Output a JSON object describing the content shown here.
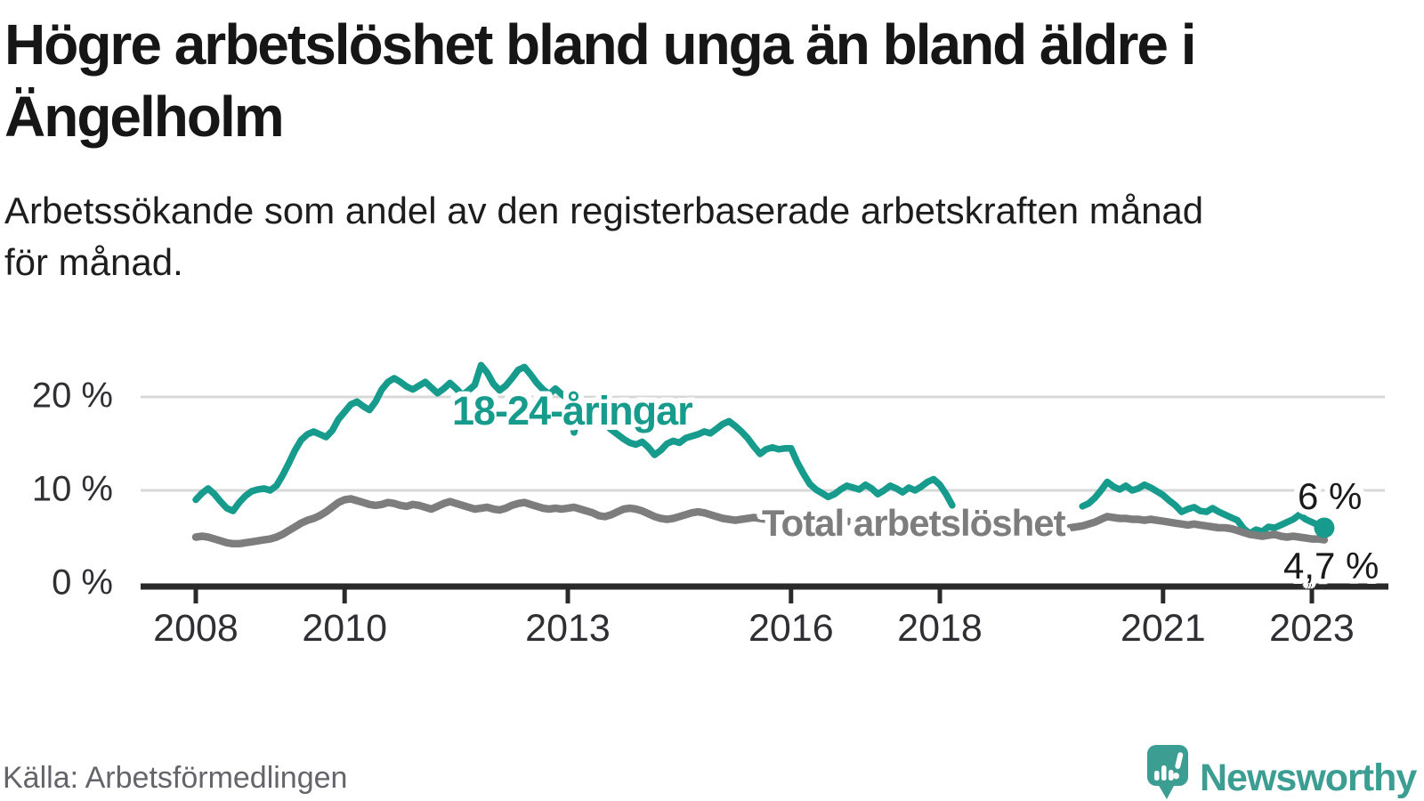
{
  "header": {
    "title_line1": "Högre arbetslöshet bland unga än bland äldre i",
    "title_line2": "Ängelholm",
    "subtitle_line1": "Arbetssökande som andel av den registerbaserade arbetskraften månad",
    "subtitle_line2": "för månad."
  },
  "footer": {
    "source": "Källa: Arbetsförmedlingen",
    "brand_name": "Newsworthy"
  },
  "colors": {
    "accent_teal": "#169b8c",
    "series_gray": "#7d7d7d",
    "grid": "#d8d8d8",
    "axis": "#2a2a2a",
    "tick_text": "#303034",
    "logo_teal": "#3c9e92",
    "end_label_text": "#1a1a1a"
  },
  "chart_data": {
    "type": "line",
    "title": "Högre arbetslöshet bland unga än bland äldre i Ängelholm",
    "subtitle": "Arbetssökande som andel av den registerbaserade arbetskraften månad för månad.",
    "xlabel": "",
    "ylabel": "",
    "frequency": "monthly",
    "x_start": {
      "year": 2008,
      "month": 1
    },
    "x_end": {
      "year": 2023,
      "month": 3
    },
    "ylim": [
      0,
      24
    ],
    "grid": "horizontal",
    "legend_position": "inline-labels",
    "yticks": [
      {
        "value": 0,
        "label": "0 %"
      },
      {
        "value": 10,
        "label": "10 %"
      },
      {
        "value": 20,
        "label": "20 %"
      }
    ],
    "xticks": [
      {
        "year": 2008,
        "label": "2008"
      },
      {
        "year": 2010,
        "label": "2010"
      },
      {
        "year": 2013,
        "label": "2013"
      },
      {
        "year": 2016,
        "label": "2016"
      },
      {
        "year": 2018,
        "label": "2018"
      },
      {
        "year": 2021,
        "label": "2021"
      },
      {
        "year": 2023,
        "label": "2023"
      }
    ],
    "series": [
      {
        "name": "18-24-åringar",
        "color": "#169b8c",
        "end_label": "6 %",
        "last_value": 6.0,
        "end_marker": true,
        "data_gap": "2018-04 till 2019-11",
        "values": [
          9.0,
          9.7,
          10.2,
          9.6,
          8.8,
          8.1,
          7.8,
          8.7,
          9.4,
          9.9,
          10.1,
          10.2,
          10.0,
          10.5,
          11.6,
          12.9,
          14.3,
          15.4,
          16.0,
          16.3,
          16.0,
          15.7,
          16.4,
          17.6,
          18.4,
          19.2,
          19.5,
          19.0,
          18.6,
          19.5,
          20.8,
          21.6,
          22.0,
          21.6,
          21.1,
          20.8,
          21.2,
          21.6,
          21.0,
          20.4,
          20.9,
          21.5,
          20.9,
          20.2,
          20.7,
          21.3,
          23.4,
          22.6,
          21.4,
          20.7,
          21.2,
          22.0,
          22.9,
          23.2,
          22.4,
          21.5,
          20.8,
          20.3,
          20.9,
          20.3,
          19.8,
          16.2,
          18.9,
          19.3,
          18.6,
          17.9,
          17.1,
          16.5,
          16.0,
          15.5,
          15.1,
          14.9,
          15.2,
          14.6,
          13.8,
          14.3,
          15.0,
          15.3,
          15.1,
          15.6,
          15.8,
          16.0,
          16.3,
          16.1,
          16.6,
          17.1,
          17.4,
          16.9,
          16.3,
          15.6,
          14.7,
          13.9,
          14.4,
          14.6,
          14.4,
          14.5,
          14.5,
          13.0,
          11.8,
          10.7,
          10.1,
          9.7,
          9.3,
          9.6,
          10.1,
          10.5,
          10.3,
          10.1,
          10.6,
          10.2,
          9.6,
          10.0,
          10.5,
          10.2,
          9.8,
          10.3,
          10.0,
          10.4,
          10.9,
          11.2,
          10.6,
          9.6,
          8.4,
          null,
          null,
          null,
          null,
          null,
          null,
          null,
          null,
          null,
          null,
          null,
          null,
          null,
          null,
          null,
          null,
          null,
          null,
          null,
          null,
          8.3,
          8.6,
          9.2,
          10.0,
          10.9,
          10.4,
          10.1,
          10.5,
          10.0,
          10.2,
          10.6,
          10.3,
          9.9,
          9.5,
          8.9,
          8.4,
          7.7,
          8.0,
          8.2,
          7.8,
          7.7,
          8.1,
          7.7,
          7.4,
          7.1,
          6.8,
          5.9,
          5.4,
          5.8,
          5.6,
          6.1,
          6.0,
          6.3,
          6.6,
          6.9,
          7.4,
          6.9,
          6.6,
          6.3,
          6.0
        ]
      },
      {
        "name": "Total arbetslöshet",
        "color": "#7d7d7d",
        "end_label": "4,7 %",
        "last_value": 4.7,
        "end_marker": false,
        "values": [
          5.0,
          5.1,
          5.0,
          4.8,
          4.6,
          4.4,
          4.3,
          4.3,
          4.4,
          4.5,
          4.6,
          4.7,
          4.8,
          5.0,
          5.3,
          5.7,
          6.1,
          6.5,
          6.8,
          7.0,
          7.3,
          7.7,
          8.2,
          8.7,
          9.0,
          9.1,
          8.9,
          8.7,
          8.5,
          8.4,
          8.5,
          8.7,
          8.6,
          8.4,
          8.3,
          8.5,
          8.4,
          8.2,
          8.0,
          8.3,
          8.6,
          8.8,
          8.6,
          8.4,
          8.2,
          8.0,
          8.1,
          8.2,
          8.0,
          7.9,
          8.1,
          8.4,
          8.6,
          8.7,
          8.5,
          8.3,
          8.1,
          8.0,
          8.1,
          8.0,
          8.1,
          8.2,
          8.0,
          7.8,
          7.6,
          7.3,
          7.2,
          7.4,
          7.7,
          8.0,
          8.1,
          8.0,
          7.8,
          7.5,
          7.2,
          7.0,
          6.9,
          7.0,
          7.2,
          7.4,
          7.6,
          7.7,
          7.6,
          7.4,
          7.2,
          7.0,
          6.9,
          6.8,
          6.9,
          7.0,
          7.1,
          7.0,
          6.9,
          7.0,
          7.1,
          7.0,
          6.9,
          6.8,
          6.7,
          6.6,
          6.6,
          6.5,
          6.6,
          6.7,
          6.8,
          6.7,
          6.6,
          6.6,
          6.7,
          6.6,
          6.5,
          6.6,
          6.7,
          6.8,
          6.7,
          6.6,
          6.5,
          6.6,
          6.5,
          6.4,
          6.5,
          6.4,
          6.3,
          6.2,
          6.2,
          6.1,
          6.1,
          6.0,
          6.0,
          5.9,
          5.9,
          5.9,
          5.9,
          5.8,
          5.8,
          5.7,
          5.7,
          5.8,
          5.8,
          5.9,
          6.0,
          6.0,
          6.1,
          6.2,
          6.4,
          6.6,
          6.9,
          7.2,
          7.1,
          7.0,
          7.0,
          6.9,
          6.9,
          6.8,
          6.9,
          6.8,
          6.7,
          6.6,
          6.5,
          6.4,
          6.3,
          6.4,
          6.3,
          6.2,
          6.1,
          6.0,
          6.0,
          5.9,
          5.7,
          5.5,
          5.3,
          5.2,
          5.1,
          5.2,
          5.3,
          5.1,
          5.0,
          5.1,
          5.0,
          4.9,
          4.8,
          4.8,
          4.7
        ]
      }
    ]
  }
}
